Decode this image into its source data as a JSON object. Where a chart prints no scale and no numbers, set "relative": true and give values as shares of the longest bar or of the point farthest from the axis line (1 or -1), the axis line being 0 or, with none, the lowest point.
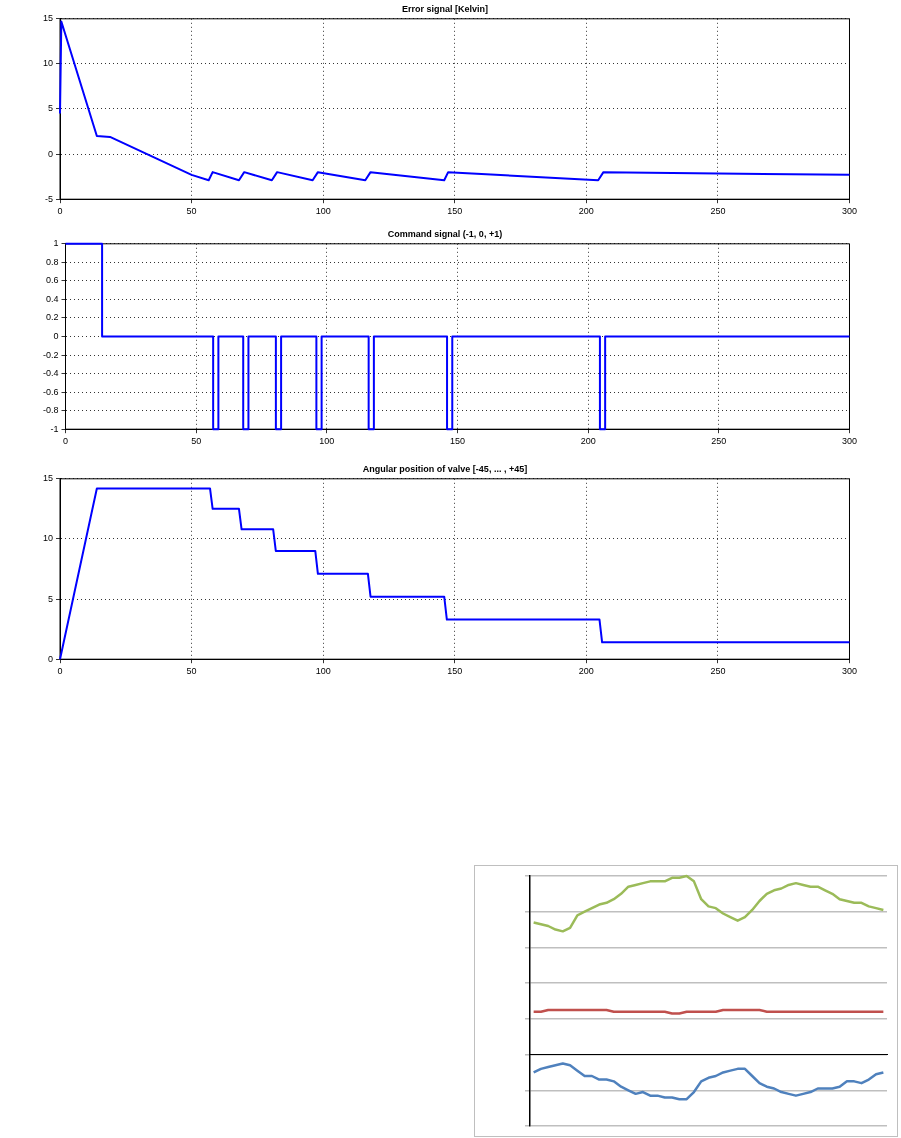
{
  "chart_data": [
    {
      "type": "line",
      "title": "Error signal [Kelvin]",
      "xlim": [
        0,
        300
      ],
      "xticks": [
        0,
        50,
        100,
        150,
        200,
        250,
        300
      ],
      "ylim": [
        -5,
        15
      ],
      "yticks": [
        -5,
        0,
        5,
        10,
        15
      ],
      "grid": true,
      "marker": "none",
      "line_style": "solid",
      "series": [
        {
          "color": "#0000ff",
          "x": [
            0,
            0.5,
            14,
            19,
            50,
            56.5,
            58,
            68,
            70,
            80.5,
            82.5,
            96,
            98,
            116,
            118,
            146,
            147.5,
            204.5,
            206.5,
            300
          ],
          "values": [
            4.5,
            14.7,
            2,
            1.9,
            -2.3,
            -2.9,
            -2,
            -2.9,
            -2,
            -2.9,
            -2,
            -2.9,
            -2,
            -2.9,
            -2,
            -2.9,
            -2,
            -2.9,
            -2,
            -2.3
          ]
        }
      ]
    },
    {
      "type": "line",
      "title": "Command signal (-1, 0, +1)",
      "xlim": [
        0,
        300
      ],
      "xticks": [
        0,
        50,
        100,
        150,
        200,
        250,
        300
      ],
      "ylim": [
        -1,
        1
      ],
      "yticks": [
        -1,
        -0.8,
        -0.6,
        -0.4,
        -0.2,
        0,
        0.2,
        0.4,
        0.6,
        0.8,
        1
      ],
      "grid": true,
      "marker": "none",
      "line_style": "solid",
      "series": [
        {
          "color": "#0000ff",
          "x": [
            0,
            14,
            14,
            56.5,
            56.5,
            58.5,
            58.5,
            68,
            68,
            70,
            70,
            80.5,
            80.5,
            82.5,
            82.5,
            96,
            96,
            98,
            98,
            116,
            116,
            118,
            118,
            146,
            146,
            148,
            148,
            204.5,
            204.5,
            206.5,
            206.5,
            300
          ],
          "values": [
            1,
            1,
            0,
            0,
            -1,
            -1,
            0,
            0,
            -1,
            -1,
            0,
            0,
            -1,
            -1,
            0,
            0,
            -1,
            -1,
            0,
            0,
            -1,
            -1,
            0,
            0,
            -1,
            -1,
            0,
            0,
            -1,
            -1,
            0,
            0
          ]
        }
      ]
    },
    {
      "type": "line",
      "title": "Angular position of valve [-45, ... , +45]",
      "xlim": [
        0,
        300
      ],
      "xticks": [
        0,
        50,
        100,
        150,
        200,
        250,
        300
      ],
      "ylim": [
        0,
        15
      ],
      "yticks": [
        0,
        5,
        10,
        15
      ],
      "grid": true,
      "marker": "none",
      "line_style": "solid",
      "series": [
        {
          "color": "#0000ff",
          "x": [
            0,
            14,
            57,
            58,
            68,
            69,
            81,
            82,
            97,
            98,
            117,
            118,
            146,
            147,
            205,
            206,
            300
          ],
          "values": [
            0,
            14.2,
            14.2,
            12.5,
            12.5,
            10.8,
            10.8,
            9,
            9,
            7.1,
            7.1,
            5.2,
            5.2,
            3.3,
            3.3,
            1.4,
            1.4
          ]
        }
      ]
    },
    {
      "type": "line",
      "relative": true,
      "grid": "y",
      "marker": "none",
      "line_style": "solid",
      "categories": [
        null,
        null,
        null,
        null,
        null,
        null,
        null,
        null,
        null,
        null,
        null,
        null,
        null,
        null,
        null,
        null,
        null,
        null,
        null,
        null,
        null,
        null,
        null,
        null,
        null,
        null,
        null,
        null,
        null,
        null,
        null,
        null,
        null,
        null,
        null,
        null,
        null,
        null,
        null,
        null,
        null,
        null,
        null,
        null,
        null,
        null,
        null,
        null,
        null
      ],
      "series": [
        {
          "color": "#9bbb59",
          "values": [
            0.74,
            0.73,
            0.72,
            0.7,
            0.69,
            0.71,
            0.78,
            0.8,
            0.82,
            0.84,
            0.85,
            0.87,
            0.9,
            0.94,
            0.95,
            0.96,
            0.97,
            0.97,
            0.97,
            0.99,
            0.99,
            1,
            0.97,
            0.87,
            0.83,
            0.82,
            0.79,
            0.77,
            0.75,
            0.77,
            0.81,
            0.86,
            0.9,
            0.92,
            0.93,
            0.95,
            0.96,
            0.95,
            0.94,
            0.94,
            0.92,
            0.9,
            0.87,
            0.86,
            0.85,
            0.85,
            0.83,
            0.82,
            0.81
          ]
        },
        {
          "color": "#c0504d",
          "values": [
            0.24,
            0.24,
            0.25,
            0.25,
            0.25,
            0.25,
            0.25,
            0.25,
            0.25,
            0.25,
            0.25,
            0.24,
            0.24,
            0.24,
            0.24,
            0.24,
            0.24,
            0.24,
            0.24,
            0.23,
            0.23,
            0.24,
            0.24,
            0.24,
            0.24,
            0.24,
            0.25,
            0.25,
            0.25,
            0.25,
            0.25,
            0.25,
            0.24,
            0.24,
            0.24,
            0.24,
            0.24,
            0.24,
            0.24,
            0.24,
            0.24,
            0.24,
            0.24,
            0.24,
            0.24,
            0.24,
            0.24,
            0.24,
            0.24
          ]
        },
        {
          "color": "#4f81bd",
          "values": [
            -0.1,
            -0.08,
            -0.07,
            -0.06,
            -0.05,
            -0.06,
            -0.09,
            -0.12,
            -0.12,
            -0.14,
            -0.14,
            -0.15,
            -0.18,
            -0.2,
            -0.22,
            -0.21,
            -0.23,
            -0.23,
            -0.24,
            -0.24,
            -0.25,
            -0.25,
            -0.21,
            -0.15,
            -0.13,
            -0.12,
            -0.1,
            -0.09,
            -0.08,
            -0.08,
            -0.12,
            -0.16,
            -0.18,
            -0.19,
            -0.21,
            -0.22,
            -0.23,
            -0.22,
            -0.21,
            -0.19,
            -0.19,
            -0.19,
            -0.18,
            -0.15,
            -0.15,
            -0.16,
            -0.14,
            -0.11,
            -0.1
          ]
        }
      ]
    }
  ]
}
